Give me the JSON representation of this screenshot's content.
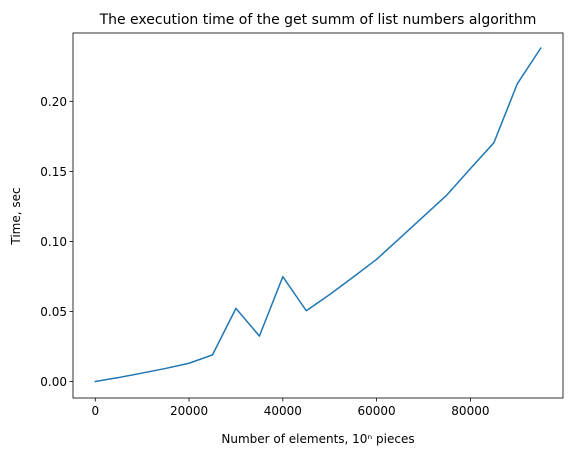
{
  "chart_data": {
    "type": "line",
    "title": "The execution time of the get summ of list numbers algorithm",
    "xlabel": "Number of elements, 10ⁿ pieces",
    "ylabel": "Time, sec",
    "xlim": [
      -4750,
      99750
    ],
    "ylim": [
      -0.0118,
      0.2488
    ],
    "x_ticks": [
      0,
      20000,
      40000,
      60000,
      80000
    ],
    "x_tick_labels": [
      "0",
      "20000",
      "40000",
      "60000",
      "80000"
    ],
    "y_ticks": [
      0.0,
      0.05,
      0.1,
      0.15,
      0.2
    ],
    "y_tick_labels": [
      "0.00",
      "0.05",
      "0.10",
      "0.15",
      "0.20"
    ],
    "grid": false,
    "legend": null,
    "series": [
      {
        "color": "#1f77b4",
        "x": [
          0,
          5000,
          10000,
          15000,
          20000,
          25000,
          30000,
          35000,
          40000,
          45000,
          50000,
          55000,
          60000,
          65000,
          70000,
          75000,
          80000,
          85000,
          90000,
          95000
        ],
        "y": [
          0.0,
          0.0028,
          0.006,
          0.0093,
          0.013,
          0.019,
          0.0522,
          0.0324,
          0.0748,
          0.0505,
          0.0621,
          0.0745,
          0.0872,
          0.1025,
          0.1178,
          0.1332,
          0.152,
          0.1704,
          0.2125,
          0.238
        ]
      }
    ]
  }
}
